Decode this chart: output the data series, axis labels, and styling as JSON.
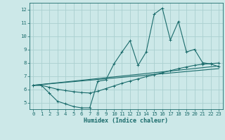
{
  "xlabel": "Humidex (Indice chaleur)",
  "background_color": "#cce8e8",
  "grid_color": "#aad0d0",
  "line_color": "#1a6b6b",
  "xlim": [
    -0.5,
    23.5
  ],
  "ylim": [
    4.5,
    12.5
  ],
  "xticks": [
    0,
    1,
    2,
    3,
    4,
    5,
    6,
    7,
    8,
    9,
    10,
    11,
    12,
    13,
    14,
    15,
    16,
    17,
    18,
    19,
    20,
    21,
    22,
    23
  ],
  "yticks": [
    5,
    6,
    7,
    8,
    9,
    10,
    11,
    12
  ],
  "line1_x": [
    0,
    1,
    2,
    3,
    4,
    5,
    6,
    7,
    8,
    9,
    10,
    11,
    12,
    13,
    14,
    15,
    16,
    17,
    18,
    19,
    20,
    21,
    22,
    23
  ],
  "line1_y": [
    6.3,
    6.3,
    5.7,
    5.1,
    4.9,
    4.7,
    4.6,
    4.6,
    6.6,
    6.7,
    7.9,
    8.8,
    9.65,
    7.8,
    8.8,
    11.65,
    12.1,
    9.7,
    11.1,
    8.8,
    9.0,
    8.0,
    7.9,
    7.7
  ],
  "line2_x": [
    0,
    1,
    2,
    3,
    4,
    5,
    6,
    7,
    8,
    9,
    10,
    11,
    12,
    13,
    14,
    15,
    16,
    17,
    18,
    19,
    20,
    21,
    22,
    23
  ],
  "line2_y": [
    6.3,
    6.3,
    6.15,
    6.0,
    5.9,
    5.82,
    5.75,
    5.72,
    5.85,
    6.05,
    6.25,
    6.45,
    6.62,
    6.78,
    6.95,
    7.1,
    7.25,
    7.4,
    7.55,
    7.68,
    7.8,
    7.88,
    7.93,
    7.97
  ],
  "line3_x": [
    0,
    23
  ],
  "line3_y": [
    6.3,
    7.75
  ],
  "line4_x": [
    0,
    23
  ],
  "line4_y": [
    6.3,
    7.55
  ]
}
